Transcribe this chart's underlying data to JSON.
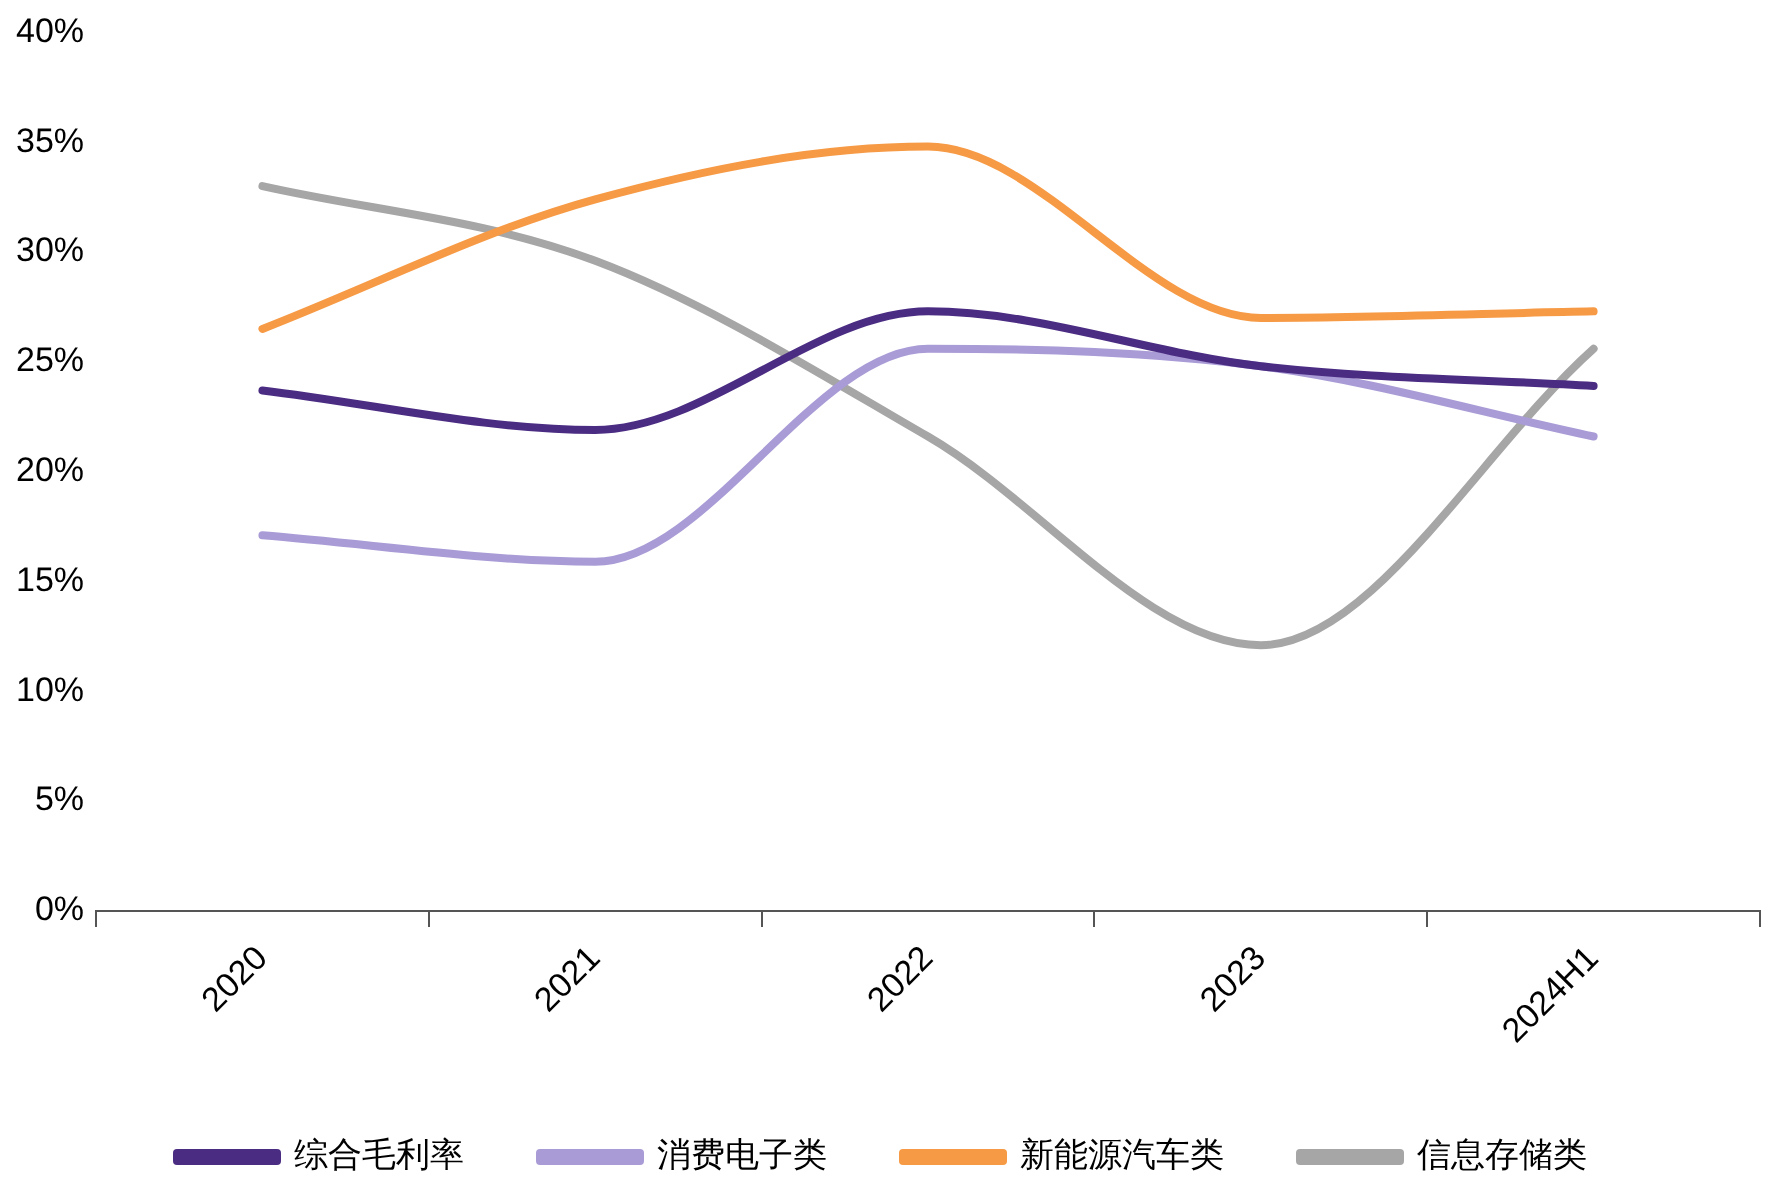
{
  "chart_data": {
    "type": "line",
    "categories": [
      "2020",
      "2021",
      "2022",
      "2023",
      "2024H1"
    ],
    "series": [
      {
        "name": "综合毛利率",
        "color": "#4b2c83",
        "values": [
          23.7,
          21.9,
          27.3,
          24.8,
          23.9
        ]
      },
      {
        "name": "消费电子类",
        "color": "#a99bd6",
        "values": [
          17.1,
          15.9,
          25.6,
          24.8,
          21.6
        ]
      },
      {
        "name": "新能源汽车类",
        "color": "#f79a45",
        "values": [
          26.5,
          32.4,
          34.8,
          27.0,
          27.3
        ]
      },
      {
        "name": "信息存储类",
        "color": "#a6a6a6",
        "values": [
          33.0,
          29.6,
          21.6,
          12.1,
          25.6
        ]
      }
    ],
    "ylim": [
      0,
      40
    ],
    "yticks": [
      {
        "value": 0,
        "label": "0%"
      },
      {
        "value": 5,
        "label": "5%"
      },
      {
        "value": 10,
        "label": "10%"
      },
      {
        "value": 15,
        "label": "15%"
      },
      {
        "value": 20,
        "label": "20%"
      },
      {
        "value": 25,
        "label": "25%"
      },
      {
        "value": 30,
        "label": "30%"
      },
      {
        "value": 35,
        "label": "35%"
      },
      {
        "value": 40,
        "label": "40%"
      }
    ],
    "grid": false,
    "legend": "bottom",
    "marker": "none",
    "line_style": "solid"
  }
}
